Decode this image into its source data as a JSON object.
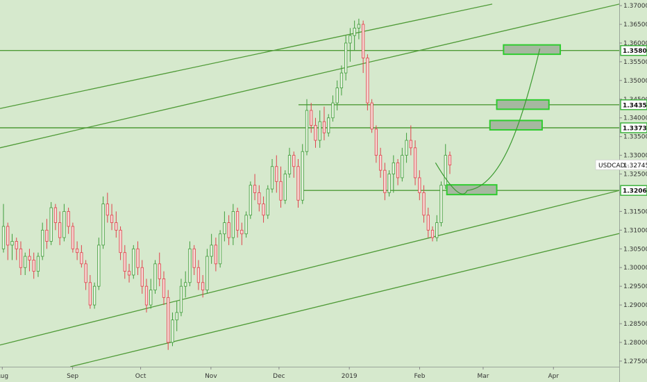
{
  "chart_data": {
    "type": "candlestick",
    "symbol": "USDCAD",
    "last_price": "1.32745",
    "y_axis": {
      "range": [
        1.2735,
        1.3715
      ],
      "ticks": [
        "1.27500",
        "1.28000",
        "1.28500",
        "1.29000",
        "1.29500",
        "1.30000",
        "1.30500",
        "1.31000",
        "1.31500",
        "1.32000",
        "1.32500",
        "1.33000",
        "1.33500",
        "1.34000",
        "1.34500",
        "1.35000",
        "1.35500",
        "1.36000",
        "1.36500",
        "1.37000"
      ]
    },
    "x_axis": {
      "range": [
        "2018-07-31",
        "2019-04-30"
      ],
      "ticks": [
        {
          "label": "Aug",
          "date": "2018-08-01"
        },
        {
          "label": "Sep",
          "date": "2018-09-01"
        },
        {
          "label": "Oct",
          "date": "2018-10-01"
        },
        {
          "label": "Nov",
          "date": "2018-11-01"
        },
        {
          "label": "Dec",
          "date": "2018-12-01"
        },
        {
          "label": "2019",
          "date": "2019-01-01"
        },
        {
          "label": "Feb",
          "date": "2019-02-01"
        },
        {
          "label": "Mar",
          "date": "2019-03-01"
        },
        {
          "label": "Apr",
          "date": "2019-04-01"
        }
      ]
    },
    "levels": [
      {
        "label": "1.35800",
        "price": 1.358
      },
      {
        "label": "1.34351",
        "price": 1.34351
      },
      {
        "label": "1.33735",
        "price": 1.33735
      },
      {
        "label": "1.32061",
        "price": 1.32061
      }
    ],
    "target_boxes": [
      {
        "date_start": "2019-02-13",
        "date_end": "2019-03-07",
        "price_low": 1.3195,
        "price_high": 1.3221
      },
      {
        "date_start": "2019-03-04",
        "date_end": "2019-03-27",
        "price_low": 1.3368,
        "price_high": 1.3393
      },
      {
        "date_start": "2019-03-07",
        "date_end": "2019-03-30",
        "price_low": 1.3423,
        "price_high": 1.3448
      },
      {
        "date_start": "2019-03-10",
        "date_end": "2019-04-04",
        "price_low": 1.357,
        "price_high": 1.3595
      }
    ],
    "channel_lines": [
      {
        "date_a": "2018-07-31",
        "price_a": 1.3425,
        "date_b": "2019-03-05",
        "price_b": 1.3704
      },
      {
        "date_a": "2018-07-31",
        "price_a": 1.332,
        "date_b": "2019-04-30",
        "price_b": 1.3704
      },
      {
        "date_a": "2018-07-31",
        "price_a": 1.2793,
        "date_b": "2019-04-30",
        "price_b": 1.3206
      },
      {
        "date_a": "2018-08-31",
        "price_a": 1.2735,
        "date_b": "2019-04-30",
        "price_b": 1.3091
      }
    ],
    "projection_path": [
      {
        "date": "2019-02-08",
        "price": 1.328
      },
      {
        "date": "2019-02-22",
        "price": 1.3206
      },
      {
        "date": "2019-03-10",
        "price": 1.33
      },
      {
        "date": "2019-03-26",
        "price": 1.3585
      }
    ],
    "candles": [
      [
        1.305,
        1.317,
        1.304,
        1.311
      ],
      [
        1.311,
        1.312,
        1.302,
        1.306
      ],
      [
        1.306,
        1.309,
        1.302,
        1.307
      ],
      [
        1.307,
        1.308,
        1.302,
        1.305
      ],
      [
        1.305,
        1.307,
        1.298,
        1.3
      ],
      [
        1.3,
        1.304,
        1.298,
        1.303
      ],
      [
        1.303,
        1.305,
        1.299,
        1.302
      ],
      [
        1.302,
        1.304,
        1.297,
        1.299
      ],
      [
        1.299,
        1.304,
        1.2975,
        1.303
      ],
      [
        1.303,
        1.312,
        1.302,
        1.31
      ],
      [
        1.31,
        1.313,
        1.305,
        1.307
      ],
      [
        1.307,
        1.3175,
        1.306,
        1.316
      ],
      [
        1.316,
        1.317,
        1.31,
        1.312
      ],
      [
        1.312,
        1.315,
        1.306,
        1.308
      ],
      [
        1.308,
        1.317,
        1.307,
        1.315
      ],
      [
        1.315,
        1.316,
        1.309,
        1.311
      ],
      [
        1.311,
        1.312,
        1.304,
        1.305
      ],
      [
        1.305,
        1.307,
        1.302,
        1.304
      ],
      [
        1.304,
        1.306,
        1.3,
        1.301
      ],
      [
        1.301,
        1.302,
        1.294,
        1.296
      ],
      [
        1.296,
        1.298,
        1.289,
        1.29
      ],
      [
        1.29,
        1.296,
        1.289,
        1.295
      ],
      [
        1.295,
        1.308,
        1.294,
        1.306
      ],
      [
        1.306,
        1.319,
        1.305,
        1.317
      ],
      [
        1.317,
        1.32,
        1.312,
        1.314
      ],
      [
        1.314,
        1.317,
        1.31,
        1.312
      ],
      [
        1.312,
        1.315,
        1.308,
        1.31
      ],
      [
        1.31,
        1.311,
        1.302,
        1.304
      ],
      [
        1.304,
        1.306,
        1.297,
        1.299
      ],
      [
        1.299,
        1.301,
        1.296,
        1.298
      ],
      [
        1.298,
        1.306,
        1.297,
        1.305
      ],
      [
        1.305,
        1.307,
        1.298,
        1.3
      ],
      [
        1.3,
        1.302,
        1.293,
        1.295
      ],
      [
        1.295,
        1.297,
        1.288,
        1.29
      ],
      [
        1.29,
        1.297,
        1.289,
        1.294
      ],
      [
        1.294,
        1.302,
        1.293,
        1.301
      ],
      [
        1.301,
        1.304,
        1.295,
        1.297
      ],
      [
        1.297,
        1.299,
        1.29,
        1.292
      ],
      [
        1.292,
        1.294,
        1.278,
        1.28
      ],
      [
        1.28,
        1.288,
        1.279,
        1.286
      ],
      [
        1.286,
        1.291,
        1.283,
        1.288
      ],
      [
        1.288,
        1.297,
        1.287,
        1.295
      ],
      [
        1.295,
        1.299,
        1.292,
        1.296
      ],
      [
        1.296,
        1.307,
        1.295,
        1.305
      ],
      [
        1.305,
        1.306,
        1.298,
        1.3
      ],
      [
        1.3,
        1.302,
        1.294,
        1.296
      ],
      [
        1.296,
        1.298,
        1.292,
        1.294
      ],
      [
        1.294,
        1.305,
        1.293,
        1.303
      ],
      [
        1.303,
        1.309,
        1.301,
        1.306
      ],
      [
        1.306,
        1.308,
        1.299,
        1.301
      ],
      [
        1.301,
        1.31,
        1.3,
        1.309
      ],
      [
        1.309,
        1.315,
        1.307,
        1.312
      ],
      [
        1.312,
        1.314,
        1.306,
        1.308
      ],
      [
        1.308,
        1.317,
        1.306,
        1.315
      ],
      [
        1.315,
        1.316,
        1.308,
        1.31
      ],
      [
        1.31,
        1.312,
        1.306,
        1.309
      ],
      [
        1.309,
        1.315,
        1.308,
        1.314
      ],
      [
        1.314,
        1.323,
        1.313,
        1.322
      ],
      [
        1.322,
        1.325,
        1.318,
        1.32
      ],
      [
        1.32,
        1.322,
        1.315,
        1.317
      ],
      [
        1.317,
        1.319,
        1.312,
        1.314
      ],
      [
        1.314,
        1.322,
        1.313,
        1.321
      ],
      [
        1.321,
        1.329,
        1.32,
        1.327
      ],
      [
        1.327,
        1.33,
        1.32,
        1.323
      ],
      [
        1.323,
        1.327,
        1.316,
        1.318
      ],
      [
        1.318,
        1.326,
        1.317,
        1.325
      ],
      [
        1.325,
        1.332,
        1.324,
        1.33
      ],
      [
        1.33,
        1.331,
        1.324,
        1.327
      ],
      [
        1.327,
        1.329,
        1.316,
        1.318
      ],
      [
        1.318,
        1.333,
        1.317,
        1.331
      ],
      [
        1.331,
        1.345,
        1.33,
        1.342
      ],
      [
        1.342,
        1.344,
        1.336,
        1.338
      ],
      [
        1.338,
        1.34,
        1.332,
        1.334
      ],
      [
        1.334,
        1.342,
        1.332,
        1.339
      ],
      [
        1.339,
        1.343,
        1.334,
        1.336
      ],
      [
        1.336,
        1.341,
        1.335,
        1.34
      ],
      [
        1.34,
        1.346,
        1.339,
        1.344
      ],
      [
        1.344,
        1.35,
        1.342,
        1.348
      ],
      [
        1.348,
        1.354,
        1.346,
        1.352
      ],
      [
        1.352,
        1.362,
        1.35,
        1.36
      ],
      [
        1.36,
        1.364,
        1.355,
        1.362
      ],
      [
        1.362,
        1.366,
        1.358,
        1.364
      ],
      [
        1.364,
        1.3665,
        1.361,
        1.365
      ],
      [
        1.365,
        1.366,
        1.352,
        1.356
      ],
      [
        1.356,
        1.357,
        1.342,
        1.344
      ],
      [
        1.344,
        1.345,
        1.336,
        1.337
      ],
      [
        1.337,
        1.338,
        1.328,
        1.33
      ],
      [
        1.33,
        1.332,
        1.324,
        1.326
      ],
      [
        1.326,
        1.328,
        1.318,
        1.32
      ],
      [
        1.32,
        1.326,
        1.319,
        1.325
      ],
      [
        1.325,
        1.33,
        1.32,
        1.328
      ],
      [
        1.328,
        1.329,
        1.322,
        1.324
      ],
      [
        1.324,
        1.332,
        1.323,
        1.33
      ],
      [
        1.33,
        1.336,
        1.328,
        1.334
      ],
      [
        1.334,
        1.338,
        1.33,
        1.332
      ],
      [
        1.332,
        1.334,
        1.322,
        1.324
      ],
      [
        1.324,
        1.326,
        1.318,
        1.32
      ],
      [
        1.32,
        1.322,
        1.312,
        1.314
      ],
      [
        1.314,
        1.316,
        1.308,
        1.31
      ],
      [
        1.31,
        1.311,
        1.307,
        1.308
      ],
      [
        1.308,
        1.314,
        1.307,
        1.312
      ],
      [
        1.312,
        1.323,
        1.311,
        1.322
      ],
      [
        1.322,
        1.333,
        1.321,
        1.33
      ],
      [
        1.33,
        1.331,
        1.325,
        1.3274
      ]
    ]
  }
}
